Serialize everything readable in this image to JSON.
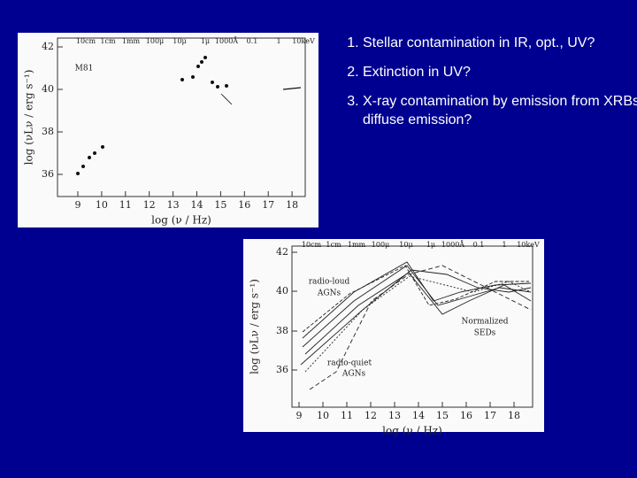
{
  "list": [
    "Stellar contamination in IR, opt., UV?",
    "Extinction in UV?",
    "X-ray contamination by emission from XRBs, diffuse emission?"
  ],
  "figures": [
    {
      "top_axis": [
        "10cm",
        "1cm",
        "1mm",
        "100μ",
        "10μ",
        "1μ",
        "1000Å",
        "0.1",
        "1",
        "10keV"
      ],
      "yticks": [
        "42",
        "40",
        "38",
        "36"
      ],
      "xticks": [
        "9",
        "10",
        "11",
        "12",
        "13",
        "14",
        "15",
        "16",
        "17",
        "18"
      ],
      "xlabel": "log (ν / Hz)",
      "ylabel": "log (νLν / erg s⁻¹)",
      "annotations": [
        "M81"
      ]
    },
    {
      "top_axis": [
        "10cm",
        "1cm",
        "1mm",
        "100μ",
        "10μ",
        "1μ",
        "1000Å",
        "0.1",
        "1",
        "10keV"
      ],
      "yticks": [
        "42",
        "40",
        "38",
        "36"
      ],
      "xticks": [
        "9",
        "10",
        "11",
        "12",
        "13",
        "14",
        "15",
        "16",
        "17",
        "18"
      ],
      "xlabel": "log (ν / Hz)",
      "ylabel": "log (νLν / erg s⁻¹)",
      "annotations": [
        "radio-loud",
        "AGNs",
        "Normalized",
        "SEDs",
        "radio-quiet",
        "AGNs"
      ]
    }
  ]
}
